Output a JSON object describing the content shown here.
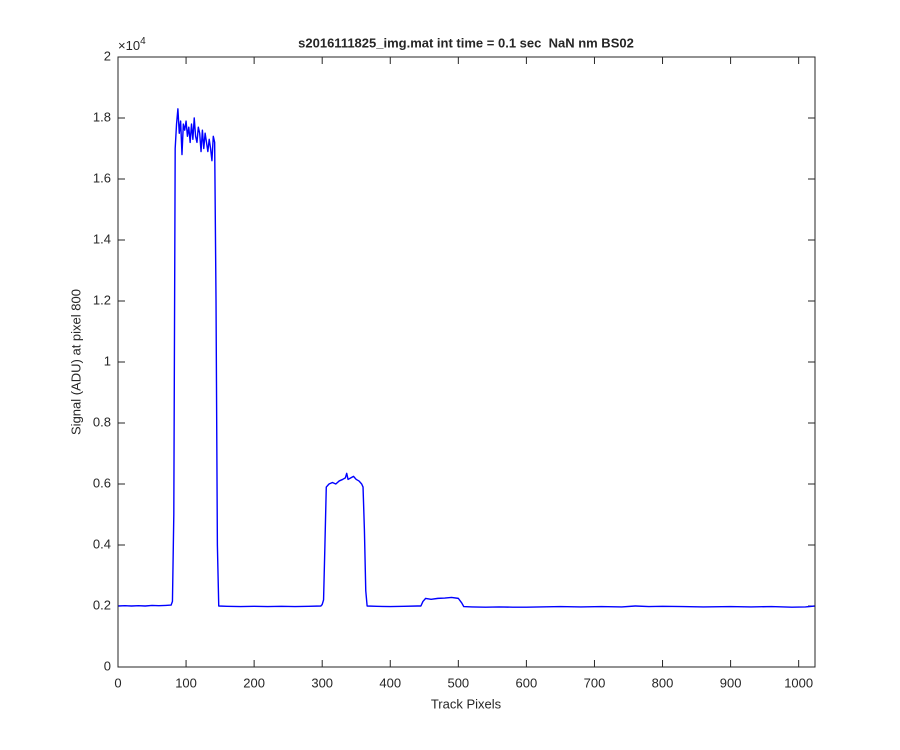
{
  "chart_data": {
    "type": "line",
    "title": "s2016111825_img.mat int time = 0.1 sec  NaN nm BS02",
    "x_label": "Track Pixels",
    "y_label": "Signal (ADU) at pixel 800",
    "y_multiplier": {
      "base": "×10",
      "exponent": "4"
    },
    "xlim": [
      0,
      1024
    ],
    "ylim": [
      0,
      2
    ],
    "xticks": [
      0,
      100,
      200,
      300,
      400,
      500,
      600,
      700,
      800,
      900,
      1000
    ],
    "yticks": [
      0,
      0.2,
      0.4,
      0.6,
      0.8,
      1,
      1.2,
      1.4,
      1.6,
      1.8,
      2
    ],
    "grid": false,
    "series": [
      {
        "name": "signal",
        "color": "#0000ff",
        "x": [
          0,
          10,
          20,
          30,
          40,
          50,
          60,
          70,
          78,
          80,
          82,
          84,
          86,
          88,
          90,
          92,
          94,
          96,
          98,
          100,
          102,
          104,
          106,
          108,
          110,
          112,
          114,
          116,
          118,
          120,
          122,
          124,
          126,
          128,
          130,
          132,
          134,
          136,
          138,
          140,
          142,
          144,
          146,
          148,
          160,
          180,
          200,
          220,
          240,
          260,
          280,
          298,
          300,
          302,
          304,
          306,
          310,
          315,
          320,
          325,
          330,
          334,
          336,
          338,
          342,
          346,
          350,
          354,
          358,
          360,
          362,
          364,
          366,
          380,
          400,
          420,
          440,
          445,
          448,
          452,
          460,
          470,
          480,
          490,
          500,
          505,
          508,
          520,
          540,
          560,
          580,
          600,
          620,
          650,
          680,
          710,
          740,
          760,
          780,
          800,
          830,
          860,
          900,
          930,
          960,
          990,
          1010,
          1024
        ],
        "values": [
          0.2,
          0.201,
          0.2,
          0.201,
          0.2,
          0.202,
          0.201,
          0.202,
          0.203,
          0.215,
          0.5,
          1.7,
          1.78,
          1.83,
          1.75,
          1.79,
          1.68,
          1.78,
          1.76,
          1.79,
          1.74,
          1.77,
          1.72,
          1.78,
          1.73,
          1.8,
          1.74,
          1.72,
          1.77,
          1.75,
          1.69,
          1.76,
          1.7,
          1.75,
          1.72,
          1.69,
          1.73,
          1.7,
          1.66,
          1.74,
          1.72,
          1.2,
          0.4,
          0.2,
          0.199,
          0.198,
          0.199,
          0.198,
          0.199,
          0.198,
          0.199,
          0.2,
          0.205,
          0.22,
          0.4,
          0.59,
          0.6,
          0.605,
          0.6,
          0.61,
          0.615,
          0.62,
          0.635,
          0.615,
          0.62,
          0.625,
          0.615,
          0.61,
          0.6,
          0.59,
          0.45,
          0.25,
          0.2,
          0.199,
          0.198,
          0.199,
          0.2,
          0.2,
          0.215,
          0.225,
          0.222,
          0.225,
          0.226,
          0.228,
          0.225,
          0.21,
          0.198,
          0.197,
          0.196,
          0.197,
          0.196,
          0.196,
          0.197,
          0.198,
          0.197,
          0.198,
          0.197,
          0.2,
          0.198,
          0.199,
          0.198,
          0.197,
          0.198,
          0.197,
          0.198,
          0.196,
          0.197,
          0.2
        ]
      }
    ]
  }
}
